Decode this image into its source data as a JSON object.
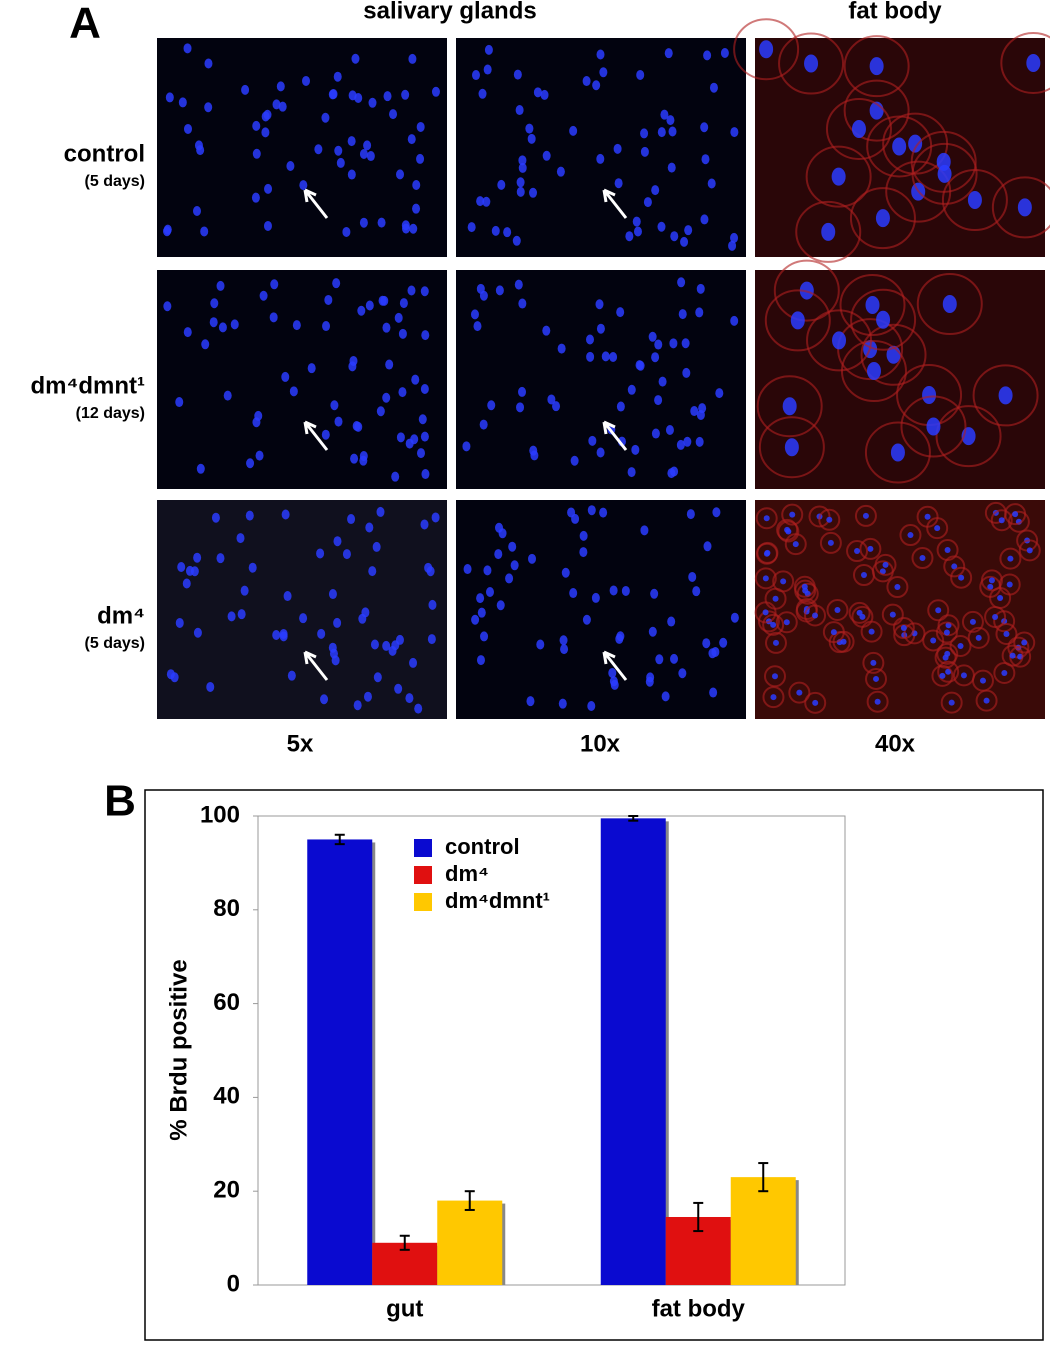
{
  "panel_a": {
    "label": "A",
    "column_headers": [
      "salivary glands",
      "fat body"
    ],
    "rows": [
      {
        "name": "control",
        "duration": "(5 days)"
      },
      {
        "name": "dm⁴dmnt¹",
        "duration": "(12 days)"
      },
      {
        "name": "dm⁴",
        "duration": "(5 days)"
      }
    ],
    "magnifications": [
      "5x",
      "10x",
      "40x"
    ]
  },
  "chart_data": {
    "type": "bar",
    "panel_label": "B",
    "y_label": "% Brdu positive",
    "categories": [
      "gut",
      "fat body"
    ],
    "series": [
      {
        "name": "control",
        "color": "#0a0ad0",
        "values": [
          95,
          99.5
        ],
        "errors": [
          1,
          0.5
        ]
      },
      {
        "name": "dm⁴",
        "color": "#e01010",
        "values": [
          9,
          14.5
        ],
        "errors": [
          1.5,
          3
        ]
      },
      {
        "name": "dm⁴dmnt¹",
        "color": "#ffc800",
        "values": [
          18,
          23
        ],
        "errors": [
          2,
          3
        ]
      }
    ],
    "ylim": [
      0,
      100
    ],
    "yticks": [
      0,
      20,
      40,
      60,
      80,
      100
    ],
    "grid": false
  }
}
